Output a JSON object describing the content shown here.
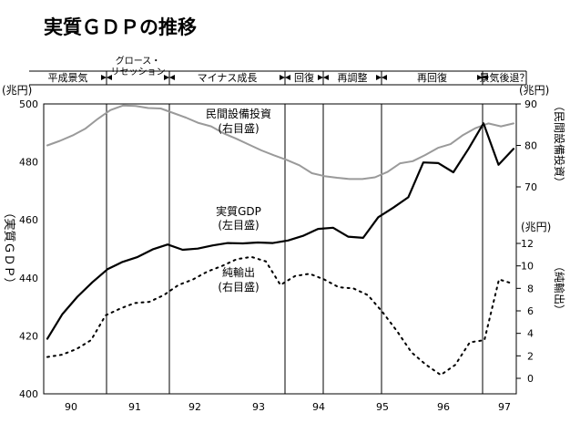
{
  "chart_data": {
    "type": "line",
    "title": "実質ＧＤＰの推移",
    "periods": [
      "平成景気",
      "グロース・リセッション",
      "マイナス成長",
      "回復",
      "再調整",
      "再回復",
      "景気後退？"
    ],
    "x_ticks": [
      "90",
      "91",
      "92",
      "93",
      "94",
      "95",
      "96",
      "97"
    ],
    "axes": {
      "left": {
        "unit": "(兆円)",
        "label": "（実質ＧＤＰ）",
        "ylim": [
          400,
          500
        ],
        "ticks": [
          "500",
          "480",
          "460",
          "440",
          "420",
          "400"
        ]
      },
      "right_upper": {
        "unit": "(兆円)",
        "label": "（民間設備投資）",
        "ylim": [
          70,
          90
        ],
        "ticks": [
          "90",
          "80",
          "70"
        ]
      },
      "right_lower": {
        "unit": "(兆円)",
        "label": "（純輸出）",
        "ylim": [
          0,
          12
        ],
        "ticks": [
          "12",
          "10",
          "8",
          "6",
          "4",
          "2",
          "0"
        ]
      }
    },
    "series": [
      {
        "name": "民間設備投資",
        "sub": "(右目盛)",
        "axis": "right_upper",
        "color": "#9a9a9a",
        "style": "solid",
        "values": [
          80.0,
          81.1,
          82.4,
          84.0,
          86.4,
          88.5,
          89.6,
          89.5,
          89.0,
          88.9,
          87.8,
          86.7,
          85.4,
          84.6,
          82.9,
          81.6,
          80.2,
          78.8,
          77.6,
          76.5,
          75.2,
          73.3,
          72.6,
          72.2,
          71.9,
          71.9,
          72.3,
          73.6,
          75.7,
          76.2,
          77.7,
          79.4,
          80.3,
          82.5,
          84.2,
          85.3,
          84.6,
          85.3
        ]
      },
      {
        "name": "実質GDP",
        "sub": "(左目盛)",
        "axis": "left",
        "color": "#000000",
        "style": "solid",
        "values": [
          419.0,
          427.5,
          433.5,
          438.5,
          443.0,
          445.5,
          447.2,
          449.8,
          451.5,
          449.7,
          450.1,
          451.2,
          452.0,
          451.9,
          452.2,
          452.0,
          452.9,
          454.5,
          456.9,
          457.3,
          454.2,
          453.8,
          460.9,
          464.2,
          467.8,
          479.8,
          479.6,
          476.4,
          484.5,
          493.3,
          479.0,
          484.5
        ]
      },
      {
        "name": "純輸出",
        "sub": "(右目盛)",
        "axis": "right_lower",
        "color": "#000000",
        "style": "dotted",
        "values": [
          1.9,
          2.1,
          2.6,
          3.4,
          5.6,
          6.2,
          6.7,
          6.8,
          7.4,
          8.3,
          8.8,
          9.5,
          10.0,
          10.6,
          10.8,
          10.4,
          8.3,
          9.1,
          9.3,
          8.8,
          8.1,
          8.0,
          7.4,
          5.9,
          4.2,
          2.3,
          1.2,
          0.3,
          1.2,
          3.2,
          3.4,
          8.8,
          8.4
        ]
      }
    ]
  }
}
